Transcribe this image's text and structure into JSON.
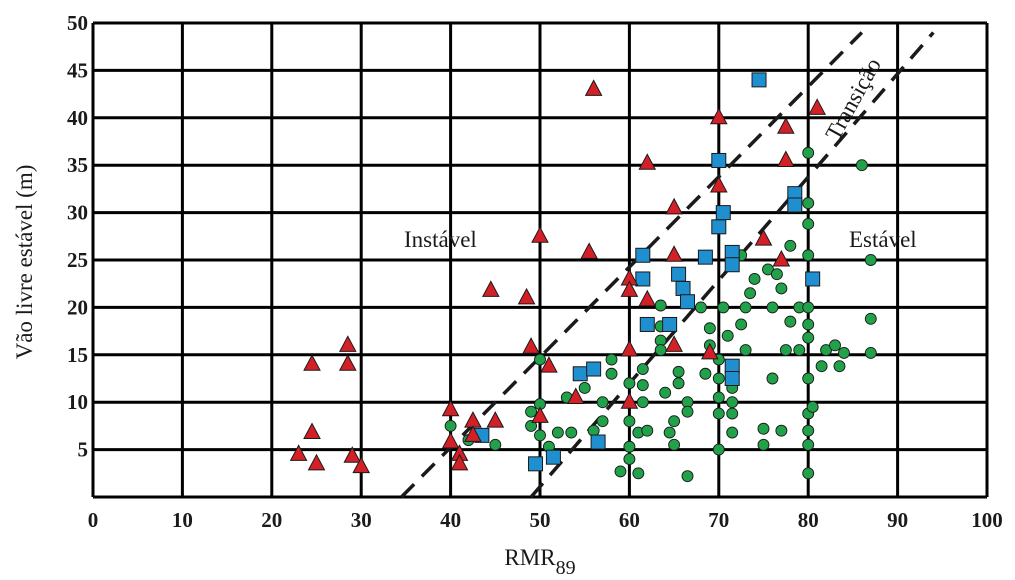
{
  "chart_data": {
    "type": "scatter",
    "title": "",
    "xlabel": "RMR",
    "xlabel_subscript": "89",
    "ylabel": "Vão livre estável (m)",
    "xlim": [
      0,
      100
    ],
    "ylim": [
      0,
      50
    ],
    "x_ticks": [
      "0",
      "10",
      "20",
      "30",
      "40",
      "50",
      "60",
      "70",
      "80",
      "90",
      "100"
    ],
    "y_ticks": [
      "5",
      "10",
      "15",
      "20",
      "25",
      "30",
      "35",
      "40",
      "45",
      "50"
    ],
    "grid": true,
    "region_labels": {
      "unstable": "Instável",
      "transition": "Transição",
      "stable": "Estável"
    },
    "boundary_lines": [
      {
        "points": [
          [
            34.5,
            0
          ],
          [
            86,
            49
          ]
        ]
      },
      {
        "points": [
          [
            49,
            0
          ],
          [
            94,
            49
          ]
        ]
      }
    ],
    "series": [
      {
        "marker": "triangle",
        "color": "#d32027",
        "points": [
          [
            23,
            4.5
          ],
          [
            25,
            3.5
          ],
          [
            24.5,
            6.8
          ],
          [
            24.5,
            14
          ],
          [
            28.5,
            16
          ],
          [
            28.5,
            14
          ],
          [
            29,
            4.3
          ],
          [
            30,
            3.2
          ],
          [
            40,
            9.2
          ],
          [
            40,
            5.8
          ],
          [
            41,
            4.5
          ],
          [
            41,
            3.5
          ],
          [
            42.5,
            8
          ],
          [
            42.5,
            6.5
          ],
          [
            45,
            8
          ],
          [
            44.5,
            21.8
          ],
          [
            49,
            15.8
          ],
          [
            48.5,
            21
          ],
          [
            50,
            27.5
          ],
          [
            50,
            8.5
          ],
          [
            51,
            13.8
          ],
          [
            54,
            10.5
          ],
          [
            55.5,
            25.8
          ],
          [
            56,
            43
          ],
          [
            60,
            23
          ],
          [
            60,
            21.8
          ],
          [
            60,
            15.5
          ],
          [
            60,
            10
          ],
          [
            62,
            20.8
          ],
          [
            62,
            35.2
          ],
          [
            65,
            30.5
          ],
          [
            65,
            25.5
          ],
          [
            65,
            16
          ],
          [
            69,
            15.2
          ],
          [
            70,
            32.8
          ],
          [
            70,
            40
          ],
          [
            75,
            27.2
          ],
          [
            77,
            25
          ],
          [
            77.5,
            39
          ],
          [
            77.5,
            35.5
          ],
          [
            81,
            41
          ]
        ]
      },
      {
        "marker": "square",
        "color": "#1f8fd0",
        "points": [
          [
            43.5,
            6.5
          ],
          [
            49.5,
            3.5
          ],
          [
            51.5,
            4.2
          ],
          [
            54.5,
            13
          ],
          [
            56,
            13.5
          ],
          [
            56.5,
            5.8
          ],
          [
            61.5,
            25.5
          ],
          [
            61.5,
            23
          ],
          [
            62,
            18.2
          ],
          [
            64.5,
            18.2
          ],
          [
            65.5,
            23.5
          ],
          [
            66,
            22
          ],
          [
            66.5,
            20.6
          ],
          [
            68.5,
            25.3
          ],
          [
            70,
            35.5
          ],
          [
            70,
            28.5
          ],
          [
            70.5,
            30
          ],
          [
            71.5,
            25.8
          ],
          [
            71.5,
            24.5
          ],
          [
            71.5,
            13.8
          ],
          [
            71.5,
            12.5
          ],
          [
            74.5,
            44
          ],
          [
            78.5,
            32
          ],
          [
            78.5,
            30.8
          ],
          [
            80.5,
            23
          ]
        ]
      },
      {
        "marker": "circle",
        "color": "#21a24a",
        "points": [
          [
            40,
            7.5
          ],
          [
            42,
            6
          ],
          [
            45,
            5.5
          ],
          [
            49,
            9
          ],
          [
            49,
            7.5
          ],
          [
            50,
            14.5
          ],
          [
            50,
            9.8
          ],
          [
            50,
            6.5
          ],
          [
            51,
            5.3
          ],
          [
            52,
            6.8
          ],
          [
            53,
            10.5
          ],
          [
            53.5,
            6.8
          ],
          [
            55,
            11.5
          ],
          [
            56,
            7
          ],
          [
            57,
            8
          ],
          [
            57,
            10
          ],
          [
            58,
            13
          ],
          [
            58,
            14.5
          ],
          [
            59,
            2.7
          ],
          [
            60,
            12
          ],
          [
            60,
            8
          ],
          [
            60,
            5.3
          ],
          [
            60,
            4
          ],
          [
            61,
            6.8
          ],
          [
            61,
            2.5
          ],
          [
            61.5,
            13.5
          ],
          [
            61.5,
            11.8
          ],
          [
            61.5,
            10
          ],
          [
            62,
            7
          ],
          [
            63.5,
            20.2
          ],
          [
            63.5,
            18
          ],
          [
            63.5,
            16.5
          ],
          [
            63.5,
            15.5
          ],
          [
            64,
            11
          ],
          [
            64.5,
            6.8
          ],
          [
            65,
            8
          ],
          [
            65,
            5.5
          ],
          [
            65.5,
            13.2
          ],
          [
            65.5,
            12
          ],
          [
            66.5,
            10
          ],
          [
            66.5,
            9
          ],
          [
            66.5,
            2.2
          ],
          [
            68,
            20
          ],
          [
            68.5,
            13
          ],
          [
            69,
            17.8
          ],
          [
            69,
            16
          ],
          [
            70,
            14.5
          ],
          [
            70,
            12.5
          ],
          [
            70,
            10.5
          ],
          [
            70,
            8.8
          ],
          [
            70,
            5
          ],
          [
            70.5,
            20
          ],
          [
            71,
            17
          ],
          [
            71.5,
            11.5
          ],
          [
            71.5,
            10
          ],
          [
            71.5,
            8.8
          ],
          [
            71.5,
            6.8
          ],
          [
            72.5,
            18.2
          ],
          [
            72.5,
            25.5
          ],
          [
            73,
            20
          ],
          [
            73,
            15.5
          ],
          [
            73.5,
            21.5
          ],
          [
            74,
            23
          ],
          [
            75,
            7.2
          ],
          [
            75,
            5.5
          ],
          [
            75.5,
            24
          ],
          [
            76,
            20
          ],
          [
            76,
            12.5
          ],
          [
            76.5,
            23.5
          ],
          [
            77,
            22
          ],
          [
            77,
            7
          ],
          [
            77.5,
            15.5
          ],
          [
            78,
            26.5
          ],
          [
            78,
            18.5
          ],
          [
            79,
            20
          ],
          [
            79,
            15.5
          ],
          [
            80,
            36.3
          ],
          [
            80,
            31
          ],
          [
            80,
            28.8
          ],
          [
            80,
            25.5
          ],
          [
            80,
            20
          ],
          [
            80,
            18.2
          ],
          [
            80,
            16.8
          ],
          [
            80,
            12.5
          ],
          [
            80,
            8.8
          ],
          [
            80,
            7
          ],
          [
            80,
            5.5
          ],
          [
            80,
            2.5
          ],
          [
            80.5,
            9.5
          ],
          [
            81.5,
            13.8
          ],
          [
            82,
            15.5
          ],
          [
            83,
            16
          ],
          [
            83.5,
            13.8
          ],
          [
            84,
            15.2
          ],
          [
            86,
            35
          ],
          [
            87,
            25
          ],
          [
            87,
            18.8
          ],
          [
            87,
            15.2
          ]
        ]
      }
    ],
    "colors": {
      "triangle": "#d32027",
      "square": "#1f8fd0",
      "circle": "#21a24a",
      "grid": "#000000",
      "boundary": "#1a1a1a"
    }
  }
}
